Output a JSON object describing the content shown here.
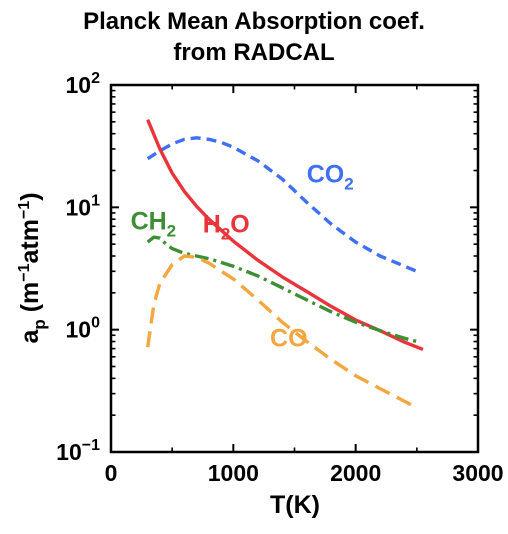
{
  "chart_data": {
    "type": "line",
    "title_line1": "Planck Mean Absorption coef.",
    "title_line2": "from RADCAL",
    "xlabel": "T(K)",
    "ylabel": {
      "base": "a",
      "sub": "p",
      "unit_open": " (m",
      "unit_exp1": "−1",
      "unit_mid": "atm",
      "unit_exp2": "−1",
      "unit_close": ")"
    },
    "xlim": [
      0,
      3000
    ],
    "ylim": [
      0.1,
      100
    ],
    "yscale": "log",
    "grid": false,
    "xticks": [
      {
        "value": 0,
        "label": "0"
      },
      {
        "value": 1000,
        "label": "1000"
      },
      {
        "value": 2000,
        "label": "2000"
      },
      {
        "value": 3000,
        "label": "3000"
      }
    ],
    "yticks": [
      {
        "value": 0.1,
        "base": "10",
        "exp": "−1"
      },
      {
        "value": 1,
        "base": "10",
        "exp": "0"
      },
      {
        "value": 10,
        "base": "10",
        "exp": "1"
      },
      {
        "value": 100,
        "base": "10",
        "exp": "2"
      }
    ],
    "series": [
      {
        "name": "CO2",
        "label_base": "CO",
        "label_sub": "2",
        "label_at": {
          "x": 1600,
          "y": 16
        },
        "color": "#3f6ff2",
        "dash": "10,6",
        "x": [
          300,
          400,
          500,
          600,
          700,
          800,
          900,
          1000,
          1200,
          1400,
          1600,
          1800,
          2000,
          2200,
          2500
        ],
        "y": [
          25,
          29,
          33,
          36,
          37,
          36,
          34,
          31,
          24,
          17,
          11,
          7.3,
          5.2,
          4.0,
          3.0
        ]
      },
      {
        "name": "H2O",
        "label_base": "H",
        "label_sub": "2",
        "label_after": "O",
        "label_at": {
          "x": 750,
          "y": 6.2
        },
        "color": "#e8343a",
        "dash": "",
        "x": [
          300,
          400,
          500,
          600,
          700,
          800,
          1000,
          1200,
          1400,
          1600,
          1800,
          2000,
          2200,
          2400,
          2550
        ],
        "y": [
          52,
          30,
          19,
          13.5,
          10.2,
          8.0,
          5.3,
          3.7,
          2.7,
          2.05,
          1.55,
          1.2,
          0.98,
          0.79,
          0.69
        ]
      },
      {
        "name": "CH2",
        "label_base": "CH",
        "label_sub": "2",
        "label_at": {
          "x": 160,
          "y": 6.6
        },
        "color": "#3d8f33",
        "dash": "14,5,3,5",
        "x": [
          300,
          350,
          400,
          450,
          500,
          600,
          700,
          800,
          1000,
          1200,
          1400,
          1600,
          1800,
          2000,
          2200,
          2400,
          2500
        ],
        "y": [
          5.2,
          5.7,
          5.6,
          5.0,
          4.6,
          4.2,
          4.0,
          3.8,
          3.3,
          2.75,
          2.2,
          1.75,
          1.4,
          1.15,
          0.98,
          0.85,
          0.8
        ]
      },
      {
        "name": "CO",
        "label_base": "CO",
        "label_at": {
          "x": 1300,
          "y": 0.73
        },
        "color": "#f4a640",
        "dash": "16,8",
        "x": [
          300,
          350,
          400,
          500,
          600,
          700,
          800,
          1000,
          1200,
          1400,
          1600,
          1800,
          2000,
          2200,
          2500
        ],
        "y": [
          0.72,
          1.6,
          2.4,
          3.4,
          4.0,
          3.9,
          3.5,
          2.6,
          1.75,
          1.15,
          0.8,
          0.57,
          0.42,
          0.33,
          0.23
        ]
      }
    ]
  }
}
